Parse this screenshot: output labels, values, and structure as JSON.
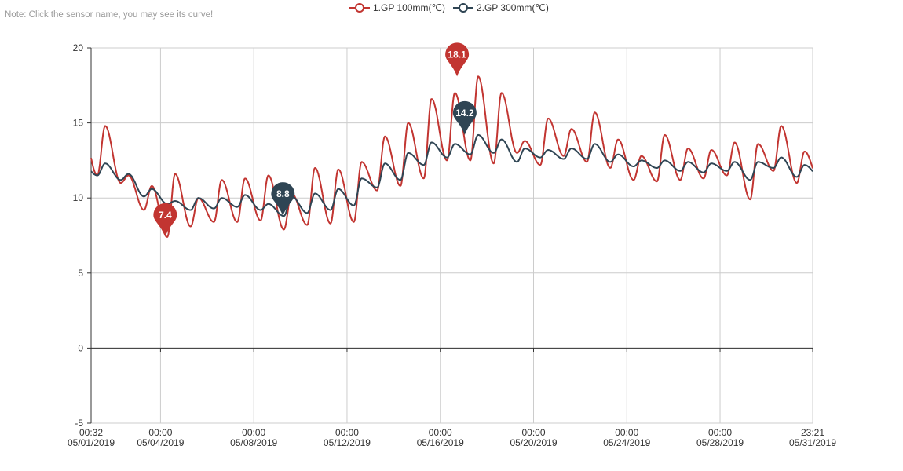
{
  "note": "Note: Click the sensor name, you may see its curve!",
  "legend": [
    {
      "name": "1.GP 100mm(℃)",
      "color": "#c23531"
    },
    {
      "name": "2.GP 300mm(℃)",
      "color": "#2f4554"
    }
  ],
  "chart_data": {
    "type": "line",
    "x_start": "05/01/2019 00:32",
    "x_end": "05/31/2019 23:21",
    "ylim": [
      -5,
      20
    ],
    "y_ticks": [
      "20",
      "15",
      "10",
      "5",
      "0",
      "-5"
    ],
    "x_ticks": [
      {
        "time": "00:32",
        "date": "05/01/2019"
      },
      {
        "time": "00:00",
        "date": "05/04/2019"
      },
      {
        "time": "00:00",
        "date": "05/08/2019"
      },
      {
        "time": "00:00",
        "date": "05/12/2019"
      },
      {
        "time": "00:00",
        "date": "05/16/2019"
      },
      {
        "time": "00:00",
        "date": "05/20/2019"
      },
      {
        "time": "00:00",
        "date": "05/24/2019"
      },
      {
        "time": "00:00",
        "date": "05/28/2019"
      },
      {
        "time": "23:21",
        "date": "05/31/2019"
      }
    ],
    "grid": true,
    "legend_position": "top-center",
    "series": [
      {
        "name": "1.GP 100mm(℃)",
        "color": "#c23531",
        "daily_min": [
          11.5,
          11.0,
          9.2,
          7.4,
          8.1,
          8.4,
          8.4,
          8.5,
          7.9,
          8.2,
          8.3,
          8.4,
          10.5,
          10.8,
          11.3,
          12.5,
          12.5,
          12.3,
          13.0,
          12.2,
          12.8,
          12.4,
          12.0,
          11.2,
          11.1,
          11.2,
          11.3,
          11.5,
          9.9,
          11.8,
          11.0
        ],
        "daily_max": [
          14.8,
          11.5,
          10.8,
          11.6,
          10.0,
          11.2,
          11.3,
          11.5,
          10.3,
          12.0,
          11.9,
          12.4,
          14.1,
          15.0,
          16.6,
          17.0,
          18.1,
          17.0,
          13.8,
          15.3,
          14.6,
          15.7,
          13.9,
          12.8,
          14.2,
          13.3,
          13.2,
          13.7,
          13.6,
          14.8,
          13.1
        ],
        "markers": [
          {
            "label": "7.4",
            "day": 3.2,
            "value": 7.4
          },
          {
            "label": "18.1",
            "day": 15.72,
            "value": 18.1
          }
        ]
      },
      {
        "name": "2.GP 300mm(℃)",
        "color": "#2f4554",
        "daily_min": [
          11.5,
          11.2,
          10.1,
          9.6,
          9.2,
          9.3,
          9.4,
          9.2,
          8.8,
          9.0,
          9.2,
          9.5,
          10.7,
          11.2,
          12.2,
          12.7,
          12.9,
          13.0,
          12.4,
          12.7,
          12.6,
          12.6,
          12.4,
          12.1,
          12.0,
          11.8,
          11.7,
          11.8,
          11.2,
          12.0,
          11.4
        ],
        "daily_max": [
          12.3,
          11.6,
          10.6,
          9.8,
          10.0,
          10.0,
          10.2,
          9.6,
          10.1,
          10.3,
          10.6,
          11.3,
          12.3,
          13.0,
          13.7,
          13.6,
          14.2,
          13.9,
          13.3,
          13.2,
          13.3,
          13.6,
          12.9,
          12.5,
          12.5,
          12.4,
          12.3,
          12.4,
          12.4,
          12.7,
          12.2
        ],
        "markers": [
          {
            "label": "8.8",
            "day": 8.25,
            "value": 8.8
          },
          {
            "label": "14.2",
            "day": 16.05,
            "value": 14.2
          }
        ]
      }
    ]
  }
}
